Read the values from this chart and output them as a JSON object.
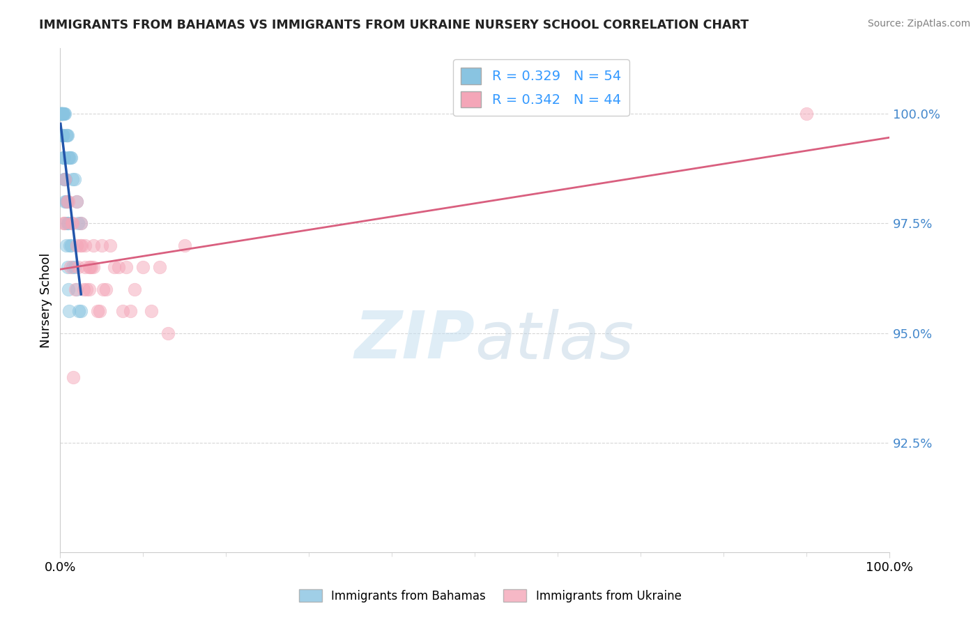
{
  "title": "IMMIGRANTS FROM BAHAMAS VS IMMIGRANTS FROM UKRAINE NURSERY SCHOOL CORRELATION CHART",
  "source": "Source: ZipAtlas.com",
  "ylabel": "Nursery School",
  "legend_label1": "Immigrants from Bahamas",
  "legend_label2": "Immigrants from Ukraine",
  "R1": 0.329,
  "N1": 54,
  "R2": 0.342,
  "N2": 44,
  "color1": "#89c4e1",
  "color2": "#f4a6b8",
  "trendline_color1": "#2255aa",
  "trendline_color2": "#d95f7f",
  "xlim": [
    0.0,
    100.0
  ],
  "ylim": [
    90.0,
    101.5
  ],
  "yticks": [
    92.5,
    95.0,
    97.5,
    100.0
  ],
  "ytick_labels": [
    "92.5%",
    "95.0%",
    "97.5%",
    "100.0%"
  ],
  "xtick_labels": [
    "0.0%",
    "100.0%"
  ],
  "watermark_zip": "ZIP",
  "watermark_atlas": "atlas",
  "bahamas_x": [
    0.05,
    0.1,
    0.15,
    0.2,
    0.25,
    0.3,
    0.35,
    0.4,
    0.5,
    0.6,
    0.7,
    0.8,
    0.9,
    1.0,
    1.1,
    1.2,
    1.3,
    1.5,
    1.7,
    2.0,
    2.2,
    2.5,
    0.08,
    0.12,
    0.18,
    0.22,
    0.28,
    0.32,
    0.38,
    0.42,
    0.52,
    0.62,
    0.72,
    0.82,
    0.92,
    1.02,
    1.12,
    1.32,
    1.52,
    1.72,
    2.02,
    2.22,
    2.52,
    0.06,
    0.16,
    0.26,
    0.36,
    0.46,
    0.56,
    0.66,
    0.76,
    0.86,
    0.96,
    1.06
  ],
  "bahamas_y": [
    100.0,
    100.0,
    100.0,
    100.0,
    100.0,
    100.0,
    100.0,
    100.0,
    100.0,
    100.0,
    99.5,
    99.5,
    99.5,
    99.0,
    99.0,
    99.0,
    99.0,
    98.5,
    98.5,
    98.0,
    97.5,
    97.5,
    100.0,
    100.0,
    100.0,
    100.0,
    99.5,
    99.5,
    99.0,
    99.0,
    98.5,
    98.5,
    98.0,
    98.0,
    97.5,
    97.5,
    97.0,
    97.0,
    96.5,
    96.5,
    96.0,
    95.5,
    95.5,
    100.0,
    100.0,
    99.5,
    99.0,
    98.5,
    98.0,
    97.5,
    97.0,
    96.5,
    96.0,
    95.5
  ],
  "ukraine_x": [
    0.5,
    1.0,
    1.5,
    2.0,
    2.5,
    3.0,
    3.5,
    4.0,
    5.0,
    6.0,
    7.0,
    8.0,
    9.0,
    10.0,
    12.0,
    15.0,
    0.8,
    1.2,
    1.8,
    2.2,
    2.8,
    3.2,
    3.8,
    4.5,
    5.5,
    7.5,
    11.0,
    0.6,
    1.4,
    2.0,
    2.6,
    3.0,
    3.5,
    4.0,
    4.8,
    5.2,
    6.5,
    8.5,
    13.0,
    90.0,
    0.4,
    1.6,
    2.4,
    3.6
  ],
  "ukraine_y": [
    97.5,
    98.0,
    97.5,
    97.0,
    97.5,
    97.0,
    96.5,
    96.5,
    97.0,
    97.0,
    96.5,
    96.5,
    96.0,
    96.5,
    96.5,
    97.0,
    98.0,
    96.5,
    96.0,
    96.5,
    96.0,
    96.0,
    96.5,
    95.5,
    96.0,
    95.5,
    95.5,
    98.5,
    97.5,
    98.0,
    97.0,
    96.5,
    96.0,
    97.0,
    95.5,
    96.0,
    96.5,
    95.5,
    95.0,
    100.0,
    97.5,
    94.0,
    97.0,
    96.5
  ]
}
